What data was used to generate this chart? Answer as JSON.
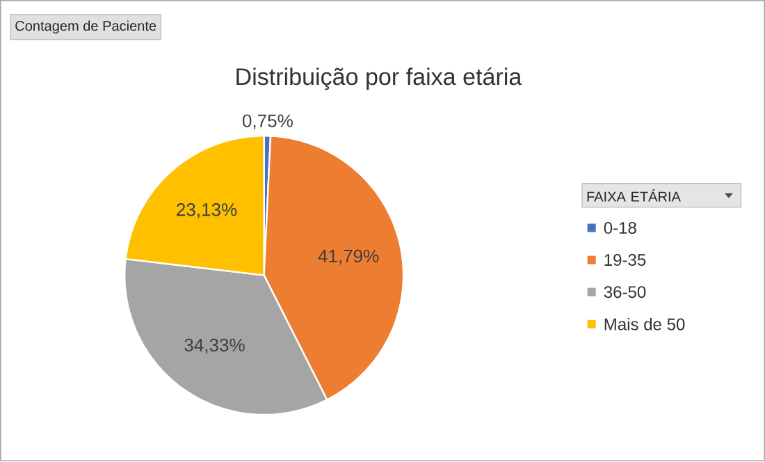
{
  "chart_data": {
    "type": "pie",
    "title": "Distribuição por faixa etária",
    "annotations": [
      "Contagem de Paciente"
    ],
    "legend_title": "FAIXA ETÁRIA",
    "legend": "right",
    "categories": [
      "0-18",
      "19-35",
      "36-50",
      "Mais de 50"
    ],
    "values": [
      0.75,
      41.79,
      34.33,
      23.13
    ],
    "colors": [
      "#4472c4",
      "#ed7d31",
      "#a5a5a5",
      "#ffc000"
    ],
    "value_labels": [
      "0,75%",
      "41,79%",
      "34,33%",
      "23,13%"
    ]
  }
}
